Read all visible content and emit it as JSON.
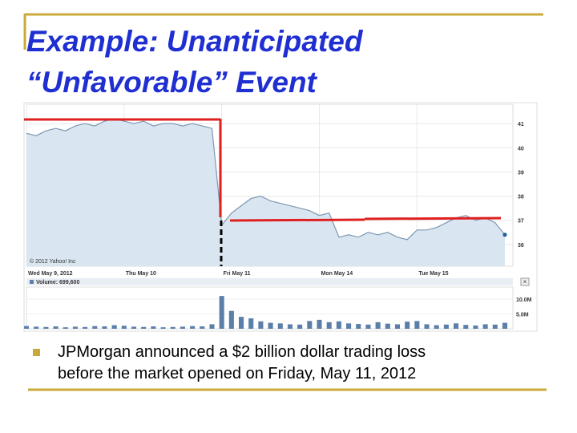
{
  "slide": {
    "title_lines": [
      "Example: Unanticipated",
      "“Unfavorable” Event"
    ],
    "bullet_lines": [
      "JPMorgan announced a $2 billion dollar trading loss",
      "before the market opened on Friday, May 11, 2012"
    ]
  },
  "chart_data": [
    {
      "type": "line",
      "copyright": "© 2012 Yahoo! Inc",
      "categories": [
        "Wed May 9, 2012",
        null,
        null,
        null,
        null,
        null,
        null,
        null,
        null,
        null,
        "Thu May 10",
        null,
        null,
        null,
        null,
        null,
        null,
        null,
        null,
        null,
        "Fri May 11",
        null,
        null,
        null,
        null,
        null,
        null,
        null,
        null,
        null,
        "Mon May 14",
        null,
        null,
        null,
        null,
        null,
        null,
        null,
        null,
        null,
        "Tue May 15",
        null,
        null,
        null,
        null,
        null,
        null,
        null,
        null,
        null
      ],
      "values": [
        40.6,
        40.5,
        40.7,
        40.8,
        40.7,
        40.9,
        41.0,
        40.9,
        41.1,
        41.2,
        41.1,
        41.0,
        41.1,
        40.9,
        41.0,
        41.0,
        40.9,
        41.0,
        40.9,
        40.8,
        36.8,
        37.3,
        37.6,
        37.9,
        38.0,
        37.8,
        37.7,
        37.6,
        37.5,
        37.4,
        37.2,
        37.3,
        36.3,
        36.4,
        36.3,
        36.5,
        36.4,
        36.5,
        36.3,
        36.2,
        36.6,
        36.6,
        36.7,
        36.9,
        37.1,
        37.2,
        37.0,
        37.1,
        36.9,
        36.4
      ],
      "color": "#7d97b3",
      "fill": "#d9e6f1",
      "ylim": [
        35.1,
        41.8
      ],
      "yticks": [
        36,
        37,
        38,
        39,
        40,
        41
      ],
      "grid": true
    },
    {
      "type": "bar",
      "legend": "Volume: 699,600",
      "values": [
        900000,
        700000,
        600000,
        800000,
        500000,
        700000,
        600000,
        900000,
        800000,
        1200000,
        1000000,
        700000,
        600000,
        800000,
        500000,
        600000,
        700000,
        900000,
        800000,
        1500000,
        11000000,
        6000000,
        4000000,
        3500000,
        2500000,
        2000000,
        1800000,
        1500000,
        1400000,
        2600000,
        3000000,
        2200000,
        2500000,
        1800000,
        1600000,
        1400000,
        2200000,
        1700000,
        1500000,
        2400000,
        2600000,
        1500000,
        1200000,
        1400000,
        1800000,
        1300000,
        1100000,
        1500000,
        1400000,
        2000000
      ],
      "color": "#5b7fa8",
      "ylim": [
        0,
        14000000
      ],
      "yticks": [
        {
          "value": 5000000,
          "label": "5.0M"
        },
        {
          "value": 10000000,
          "label": "10.0M"
        }
      ]
    }
  ]
}
